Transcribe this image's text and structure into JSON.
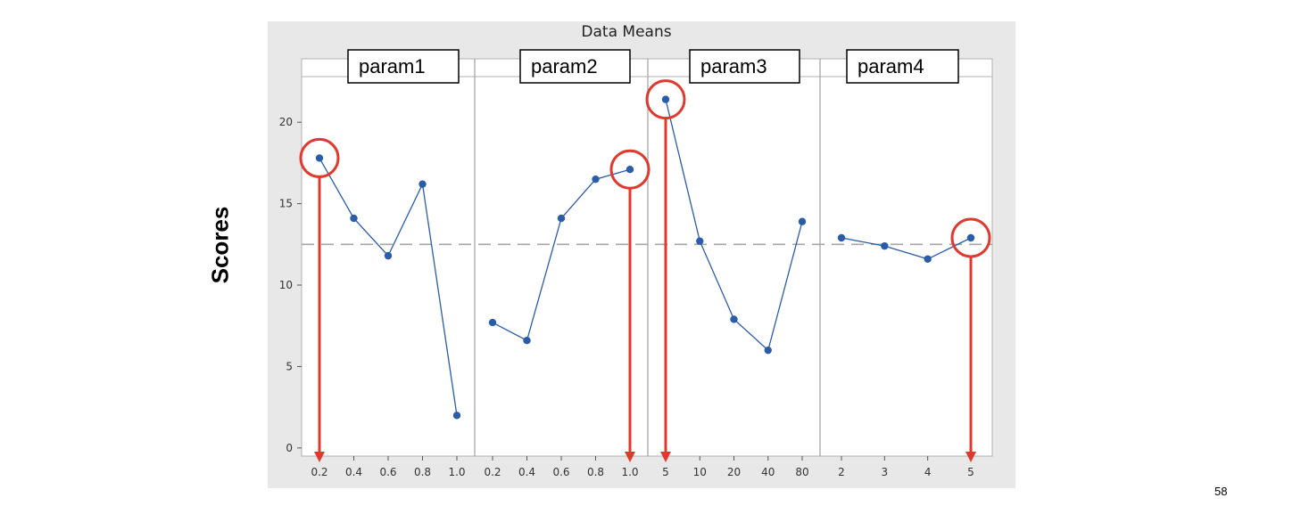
{
  "page_number": "58",
  "chart_data": {
    "type": "line",
    "title": "Data Means",
    "ylabel": "Scores",
    "ylim": [
      -0.5,
      22.8
    ],
    "yticks": [
      0,
      5,
      10,
      15,
      20
    ],
    "reference_line": 12.5,
    "grid": false,
    "colors": {
      "line": "#2a5caa",
      "reference": "#a6a6a6",
      "highlight": "#e03a2f",
      "background": "#e8e8e8"
    },
    "panels": [
      {
        "name": "param1",
        "x": [
          "0.2",
          "0.4",
          "0.6",
          "0.8",
          "1.0"
        ],
        "values": [
          17.8,
          14.1,
          11.8,
          16.2,
          2.0
        ],
        "best_index": 0
      },
      {
        "name": "param2",
        "x": [
          "0.2",
          "0.4",
          "0.6",
          "0.8",
          "1.0"
        ],
        "values": [
          7.7,
          6.6,
          14.1,
          16.5,
          17.1
        ],
        "best_index": 4
      },
      {
        "name": "param3",
        "x": [
          "5",
          "10",
          "20",
          "40",
          "80"
        ],
        "values": [
          21.4,
          12.7,
          7.9,
          6.0,
          13.9
        ],
        "best_index": 0
      },
      {
        "name": "param4",
        "x": [
          "2",
          "3",
          "4",
          "5"
        ],
        "values": [
          12.9,
          12.4,
          11.6,
          12.9
        ],
        "best_index": 3
      }
    ]
  }
}
